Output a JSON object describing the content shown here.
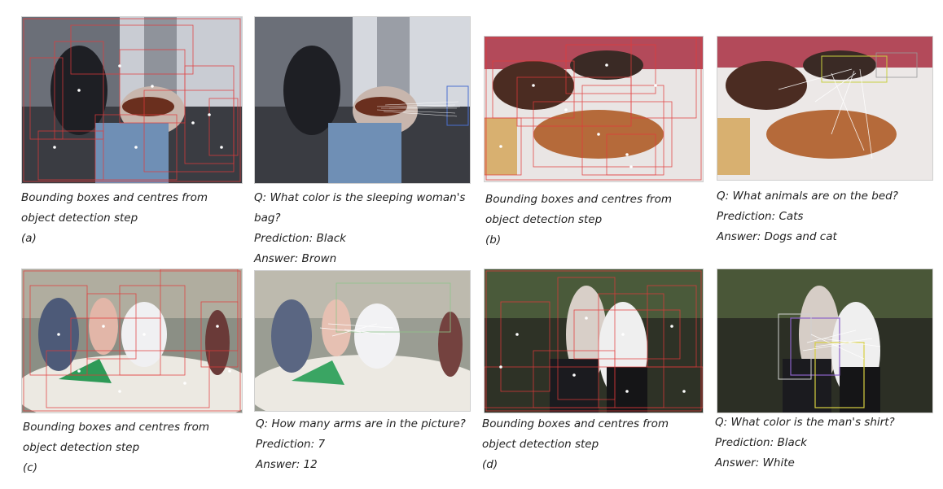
{
  "panels": {
    "a": {
      "left": {
        "caption": [
          "Bounding boxes and centres from",
          "object detection step"
        ],
        "label": "(a)"
      },
      "right": {
        "question": "Q: What color is the sleeping woman's",
        "question2": "bag?",
        "prediction": "Prediction: Black",
        "answer": "Answer: Brown"
      }
    },
    "b": {
      "left": {
        "caption": [
          "Bounding boxes and centres from",
          "object detection step"
        ],
        "label": "(b)"
      },
      "right": {
        "question": "Q: What animals are on the bed?",
        "prediction": "Prediction: Cats",
        "answer": "Answer: Dogs and cat"
      }
    },
    "c": {
      "left": {
        "caption": [
          "Bounding boxes and centres from",
          "object detection step"
        ],
        "label": "(c)"
      },
      "right": {
        "question": "Q: How many arms are in the picture?",
        "prediction": "Prediction: 7",
        "answer": "Answer: 12"
      }
    },
    "d": {
      "left": {
        "caption": [
          "Bounding boxes and centres from",
          "object detection step"
        ],
        "label": "(d)"
      },
      "right": {
        "question": "Q: What color is the man's shirt?",
        "prediction": "Prediction: Black",
        "answer": "Answer: White"
      }
    }
  },
  "colors": {
    "detection_box": "#e23a3a",
    "attention_line": "#ffffff",
    "center_dot": "#ffffff"
  }
}
